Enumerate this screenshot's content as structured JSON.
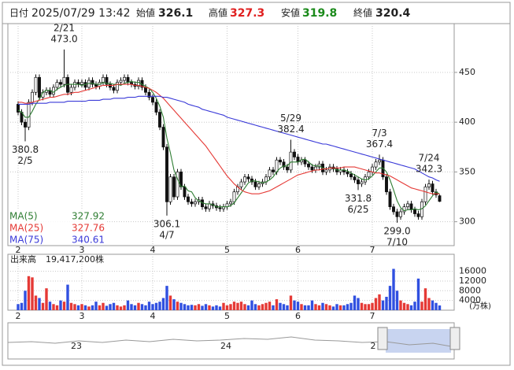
{
  "header": {
    "date_label": "日付",
    "datetime": "2025/07/29 13:42",
    "open_label": "始値",
    "high_label": "高値",
    "low_label": "安値",
    "close_label": "終値"
  },
  "navigator": {
    "labels": [
      "23",
      "24",
      "2"
    ]
  },
  "chart_data": {
    "type": "candlestick",
    "grid": true,
    "up_color": "#ffffff",
    "down_color": "#111111",
    "categories": [
      "2",
      null,
      null,
      null,
      null,
      null,
      null,
      null,
      null,
      null,
      null,
      null,
      null,
      null,
      null,
      null,
      null,
      null,
      "3",
      null,
      null,
      null,
      null,
      null,
      null,
      null,
      null,
      null,
      null,
      null,
      null,
      null,
      null,
      null,
      null,
      null,
      null,
      null,
      "4",
      null,
      null,
      null,
      null,
      null,
      null,
      null,
      null,
      null,
      null,
      null,
      null,
      null,
      null,
      null,
      null,
      null,
      null,
      null,
      null,
      "5",
      null,
      null,
      null,
      null,
      null,
      null,
      null,
      null,
      null,
      null,
      null,
      null,
      null,
      null,
      null,
      null,
      null,
      null,
      null,
      "6",
      null,
      null,
      null,
      null,
      null,
      null,
      null,
      null,
      null,
      null,
      null,
      null,
      null,
      null,
      null,
      null,
      null,
      null,
      null,
      null,
      "7",
      null,
      null,
      null,
      null,
      null,
      null,
      null,
      null,
      null,
      null,
      null,
      null,
      null,
      null,
      null,
      null,
      null,
      null,
      null
    ],
    "open": [
      418,
      410,
      400,
      395,
      420,
      430,
      445,
      425,
      430,
      432,
      428,
      435,
      440,
      438,
      445,
      430,
      435,
      440,
      438,
      440,
      435,
      442,
      438,
      436,
      440,
      445,
      438,
      435,
      432,
      440,
      442,
      445,
      440,
      438,
      436,
      442,
      435,
      430,
      425,
      420,
      410,
      395,
      375,
      320,
      345,
      325,
      350,
      335,
      325,
      320,
      318,
      320,
      322,
      315,
      313,
      318,
      316,
      314,
      313,
      315,
      318,
      320,
      330,
      335,
      340,
      345,
      343,
      340,
      335,
      338,
      340,
      345,
      352,
      350,
      362,
      360,
      355,
      352,
      370,
      365,
      360,
      362,
      358,
      355,
      352,
      355,
      358,
      350,
      352,
      355,
      353,
      350,
      352,
      350,
      348,
      345,
      342,
      338,
      340,
      345,
      350,
      355,
      360,
      362,
      345,
      330,
      315,
      310,
      305,
      310,
      315,
      318,
      312,
      308,
      305,
      320,
      335,
      338,
      330,
      326.1
    ],
    "high": [
      421,
      413,
      403,
      423,
      433,
      448,
      448,
      433,
      435,
      435,
      438,
      443,
      443,
      473,
      448,
      438,
      443,
      443,
      443,
      443,
      445,
      445,
      441,
      443,
      448,
      448,
      441,
      438,
      443,
      445,
      448,
      448,
      443,
      441,
      445,
      445,
      438,
      433,
      428,
      423,
      413,
      398,
      378,
      348,
      348,
      353,
      353,
      338,
      328,
      323,
      323,
      325,
      325,
      318,
      321,
      321,
      319,
      317,
      318,
      321,
      323,
      333,
      338,
      343,
      348,
      348,
      346,
      343,
      341,
      343,
      348,
      355,
      355,
      365,
      365,
      363,
      358,
      382.4,
      373,
      368,
      365,
      365,
      361,
      358,
      358,
      361,
      361,
      355,
      358,
      358,
      356,
      355,
      355,
      353,
      351,
      348,
      345,
      343,
      348,
      353,
      358,
      363,
      367.4,
      365,
      348,
      333,
      318,
      313,
      313,
      318,
      321,
      321,
      315,
      311,
      323,
      338,
      342.3,
      341,
      333,
      327.3
    ],
    "low": [
      407,
      397,
      380.8,
      392,
      417,
      427,
      422,
      422,
      427,
      425,
      425,
      432,
      435,
      435,
      427,
      427,
      432,
      435,
      435,
      432,
      432,
      435,
      433,
      433,
      437,
      435,
      432,
      429,
      429,
      437,
      439,
      437,
      435,
      433,
      433,
      432,
      427,
      422,
      417,
      407,
      392,
      372,
      306.1,
      317,
      322,
      322,
      332,
      322,
      317,
      315,
      315,
      317,
      312,
      310,
      310,
      313,
      311,
      310,
      310,
      312,
      315,
      317,
      327,
      332,
      337,
      340,
      337,
      332,
      332,
      335,
      337,
      342,
      347,
      347,
      357,
      352,
      349,
      349,
      362,
      357,
      357,
      355,
      352,
      349,
      349,
      352,
      347,
      347,
      349,
      350,
      347,
      347,
      347,
      345,
      342,
      339,
      331.8,
      335,
      337,
      342,
      347,
      352,
      357,
      342,
      327,
      312,
      307,
      299.0,
      302,
      307,
      312,
      309,
      305,
      302,
      302,
      317,
      332,
      327,
      324,
      319.8
    ],
    "close": [
      410,
      400,
      395,
      420,
      430,
      445,
      425,
      430,
      432,
      428,
      435,
      440,
      438,
      445,
      430,
      435,
      440,
      438,
      440,
      435,
      442,
      438,
      436,
      440,
      445,
      438,
      435,
      432,
      440,
      442,
      445,
      440,
      438,
      436,
      442,
      435,
      430,
      425,
      420,
      410,
      395,
      375,
      320,
      345,
      325,
      350,
      335,
      325,
      320,
      318,
      320,
      322,
      315,
      313,
      318,
      316,
      314,
      313,
      315,
      318,
      320,
      330,
      335,
      340,
      345,
      343,
      340,
      335,
      338,
      340,
      345,
      352,
      350,
      362,
      360,
      355,
      352,
      370,
      365,
      360,
      362,
      358,
      355,
      352,
      355,
      358,
      350,
      352,
      355,
      353,
      350,
      352,
      350,
      348,
      345,
      342,
      338,
      340,
      345,
      350,
      355,
      360,
      362,
      345,
      330,
      315,
      310,
      305,
      310,
      315,
      318,
      312,
      308,
      305,
      320,
      335,
      338,
      330,
      327,
      320.4
    ],
    "series": [
      {
        "name": "MA(5)",
        "color": "#2e7d32",
        "values": [
          412,
          410,
          405,
          405,
          411,
          418,
          423,
          430,
          432,
          432,
          430,
          433,
          435,
          437,
          438,
          438,
          438,
          438,
          437,
          438,
          439,
          439,
          438,
          438,
          440,
          439,
          439,
          438,
          438,
          437,
          439,
          440,
          441,
          440,
          440,
          438,
          436,
          434,
          430,
          424,
          416,
          405,
          384,
          369,
          352,
          343,
          335,
          336,
          331,
          330,
          324,
          321,
          319,
          318,
          318,
          317,
          315,
          315,
          315,
          315,
          316,
          319,
          324,
          329,
          334,
          339,
          341,
          341,
          340,
          339,
          340,
          342,
          345,
          350,
          354,
          356,
          356,
          360,
          360,
          360,
          362,
          363,
          360,
          357,
          356,
          356,
          354,
          353,
          354,
          354,
          352,
          352,
          352,
          351,
          349,
          347,
          345,
          343,
          342,
          343,
          346,
          350,
          354,
          354,
          350,
          342,
          332,
          321,
          314,
          311,
          312,
          312,
          313,
          312,
          313,
          316,
          321,
          326,
          330,
          327.92
        ]
      },
      {
        "name": "MA(25)",
        "color": "#e53935",
        "values": [
          420,
          420,
          419,
          419,
          420,
          421,
          422,
          423,
          424,
          425,
          425,
          426,
          427,
          428,
          428,
          429,
          430,
          430,
          431,
          432,
          433,
          434,
          435,
          436,
          437,
          437,
          437,
          437,
          438,
          438,
          438,
          438,
          438,
          437,
          437,
          436,
          435,
          434,
          432,
          430,
          427,
          424,
          420,
          416,
          412,
          408,
          404,
          400,
          396,
          392,
          388,
          384,
          380,
          376,
          371,
          366,
          361,
          356,
          351,
          346,
          342,
          338,
          335,
          332,
          330,
          329,
          328,
          328,
          328,
          329,
          330,
          331,
          333,
          335,
          337,
          339,
          341,
          343,
          345,
          347,
          348,
          349,
          350,
          351,
          352,
          352,
          353,
          353,
          354,
          354,
          354,
          354,
          355,
          355,
          355,
          355,
          354,
          353,
          352,
          351,
          350,
          349,
          349,
          348,
          347,
          346,
          344,
          342,
          340,
          338,
          336,
          334,
          333,
          332,
          331,
          330,
          329,
          328,
          328,
          327.76
        ]
      },
      {
        "name": "MA(75)",
        "color": "#3a3ad8",
        "values": [
          418,
          418,
          418,
          418,
          419,
          419,
          419,
          419,
          419,
          420,
          420,
          420,
          420,
          420,
          421,
          421,
          421,
          421,
          421,
          421,
          422,
          422,
          422,
          422,
          423,
          423,
          423,
          424,
          424,
          424,
          424,
          425,
          425,
          425,
          426,
          426,
          426,
          426,
          426,
          426,
          426,
          425,
          425,
          424,
          423,
          422,
          421,
          420,
          418,
          417,
          416,
          415,
          413,
          412,
          411,
          410,
          409,
          408,
          407,
          405,
          404,
          403,
          402,
          401,
          400,
          399,
          398,
          397,
          396,
          395,
          394,
          393,
          392,
          391,
          390,
          389,
          388,
          387,
          386,
          385,
          384,
          383,
          382,
          381,
          380,
          379,
          378,
          378,
          377,
          376,
          375,
          374,
          373,
          372,
          371,
          370,
          369,
          368,
          367,
          366,
          365,
          364,
          363,
          362,
          361,
          360,
          359,
          358,
          357,
          356,
          355,
          354,
          353,
          351,
          349,
          347,
          345,
          344,
          342,
          340.61
        ]
      }
    ],
    "ylim": [
      276,
      499
    ],
    "yticks": [
      300,
      350,
      400,
      450
    ],
    "annotations": [
      {
        "date": "2/21",
        "value": 473.0,
        "value_label": "473.0"
      },
      {
        "date": "2/5",
        "value": 380.8,
        "value_label": "380.8"
      },
      {
        "date": "4/7",
        "value": 306.1,
        "value_label": "306.1"
      },
      {
        "date": "5/29",
        "value": 382.4,
        "value_label": "382.4"
      },
      {
        "date": "7/3",
        "value": 367.4,
        "value_label": "367.4"
      },
      {
        "date": "6/25",
        "value": 331.8,
        "value_label": "331.8"
      },
      {
        "date": "7/24",
        "value": 342.3,
        "value_label": "342.3"
      },
      {
        "date": "7/10",
        "value": 299.0,
        "value_label": "299.0"
      }
    ],
    "volume": {
      "label": "出来高",
      "total_label": "19,417,200株",
      "unit": "(万株)",
      "up_color": "#e53935",
      "down_color": "#3050e0",
      "ylim": [
        0,
        23000
      ],
      "yticks": [
        4000,
        8000,
        12000,
        16000
      ],
      "values": [
        2500,
        3000,
        8000,
        14000,
        13500,
        6000,
        5000,
        3000,
        9000,
        3500,
        2500,
        2000,
        4000,
        3500,
        10500,
        3000,
        2500,
        2000,
        2500,
        2000,
        1500,
        2000,
        3500,
        2000,
        3000,
        1800,
        2500,
        3000,
        2000,
        1500,
        2000,
        4000,
        2500,
        2000,
        3000,
        2500,
        2000,
        3500,
        2500,
        3000,
        3500,
        5000,
        10000,
        6000,
        4500,
        3500,
        3000,
        2500,
        2000,
        2200,
        2000,
        2500,
        1800,
        2500,
        2000,
        1500,
        2000,
        1500,
        3000,
        2000,
        2500,
        3500,
        3000,
        3500,
        2500,
        2000,
        4000,
        2500,
        2000,
        2500,
        3000,
        3500,
        2000,
        4500,
        3000,
        2500,
        2000,
        6000,
        4000,
        3500,
        2500,
        2000,
        2000,
        4000,
        2500,
        2000,
        3000,
        2500,
        2000,
        1500,
        2500,
        2000,
        2000,
        2500,
        3000,
        6000,
        5000,
        3000,
        2500,
        2500,
        3000,
        5000,
        6500,
        4000,
        5500,
        10000,
        17000,
        8000,
        4000,
        3000,
        2500,
        2000,
        3500,
        13000,
        3500,
        9000,
        5000,
        4000,
        3000,
        1941.72
      ]
    }
  }
}
